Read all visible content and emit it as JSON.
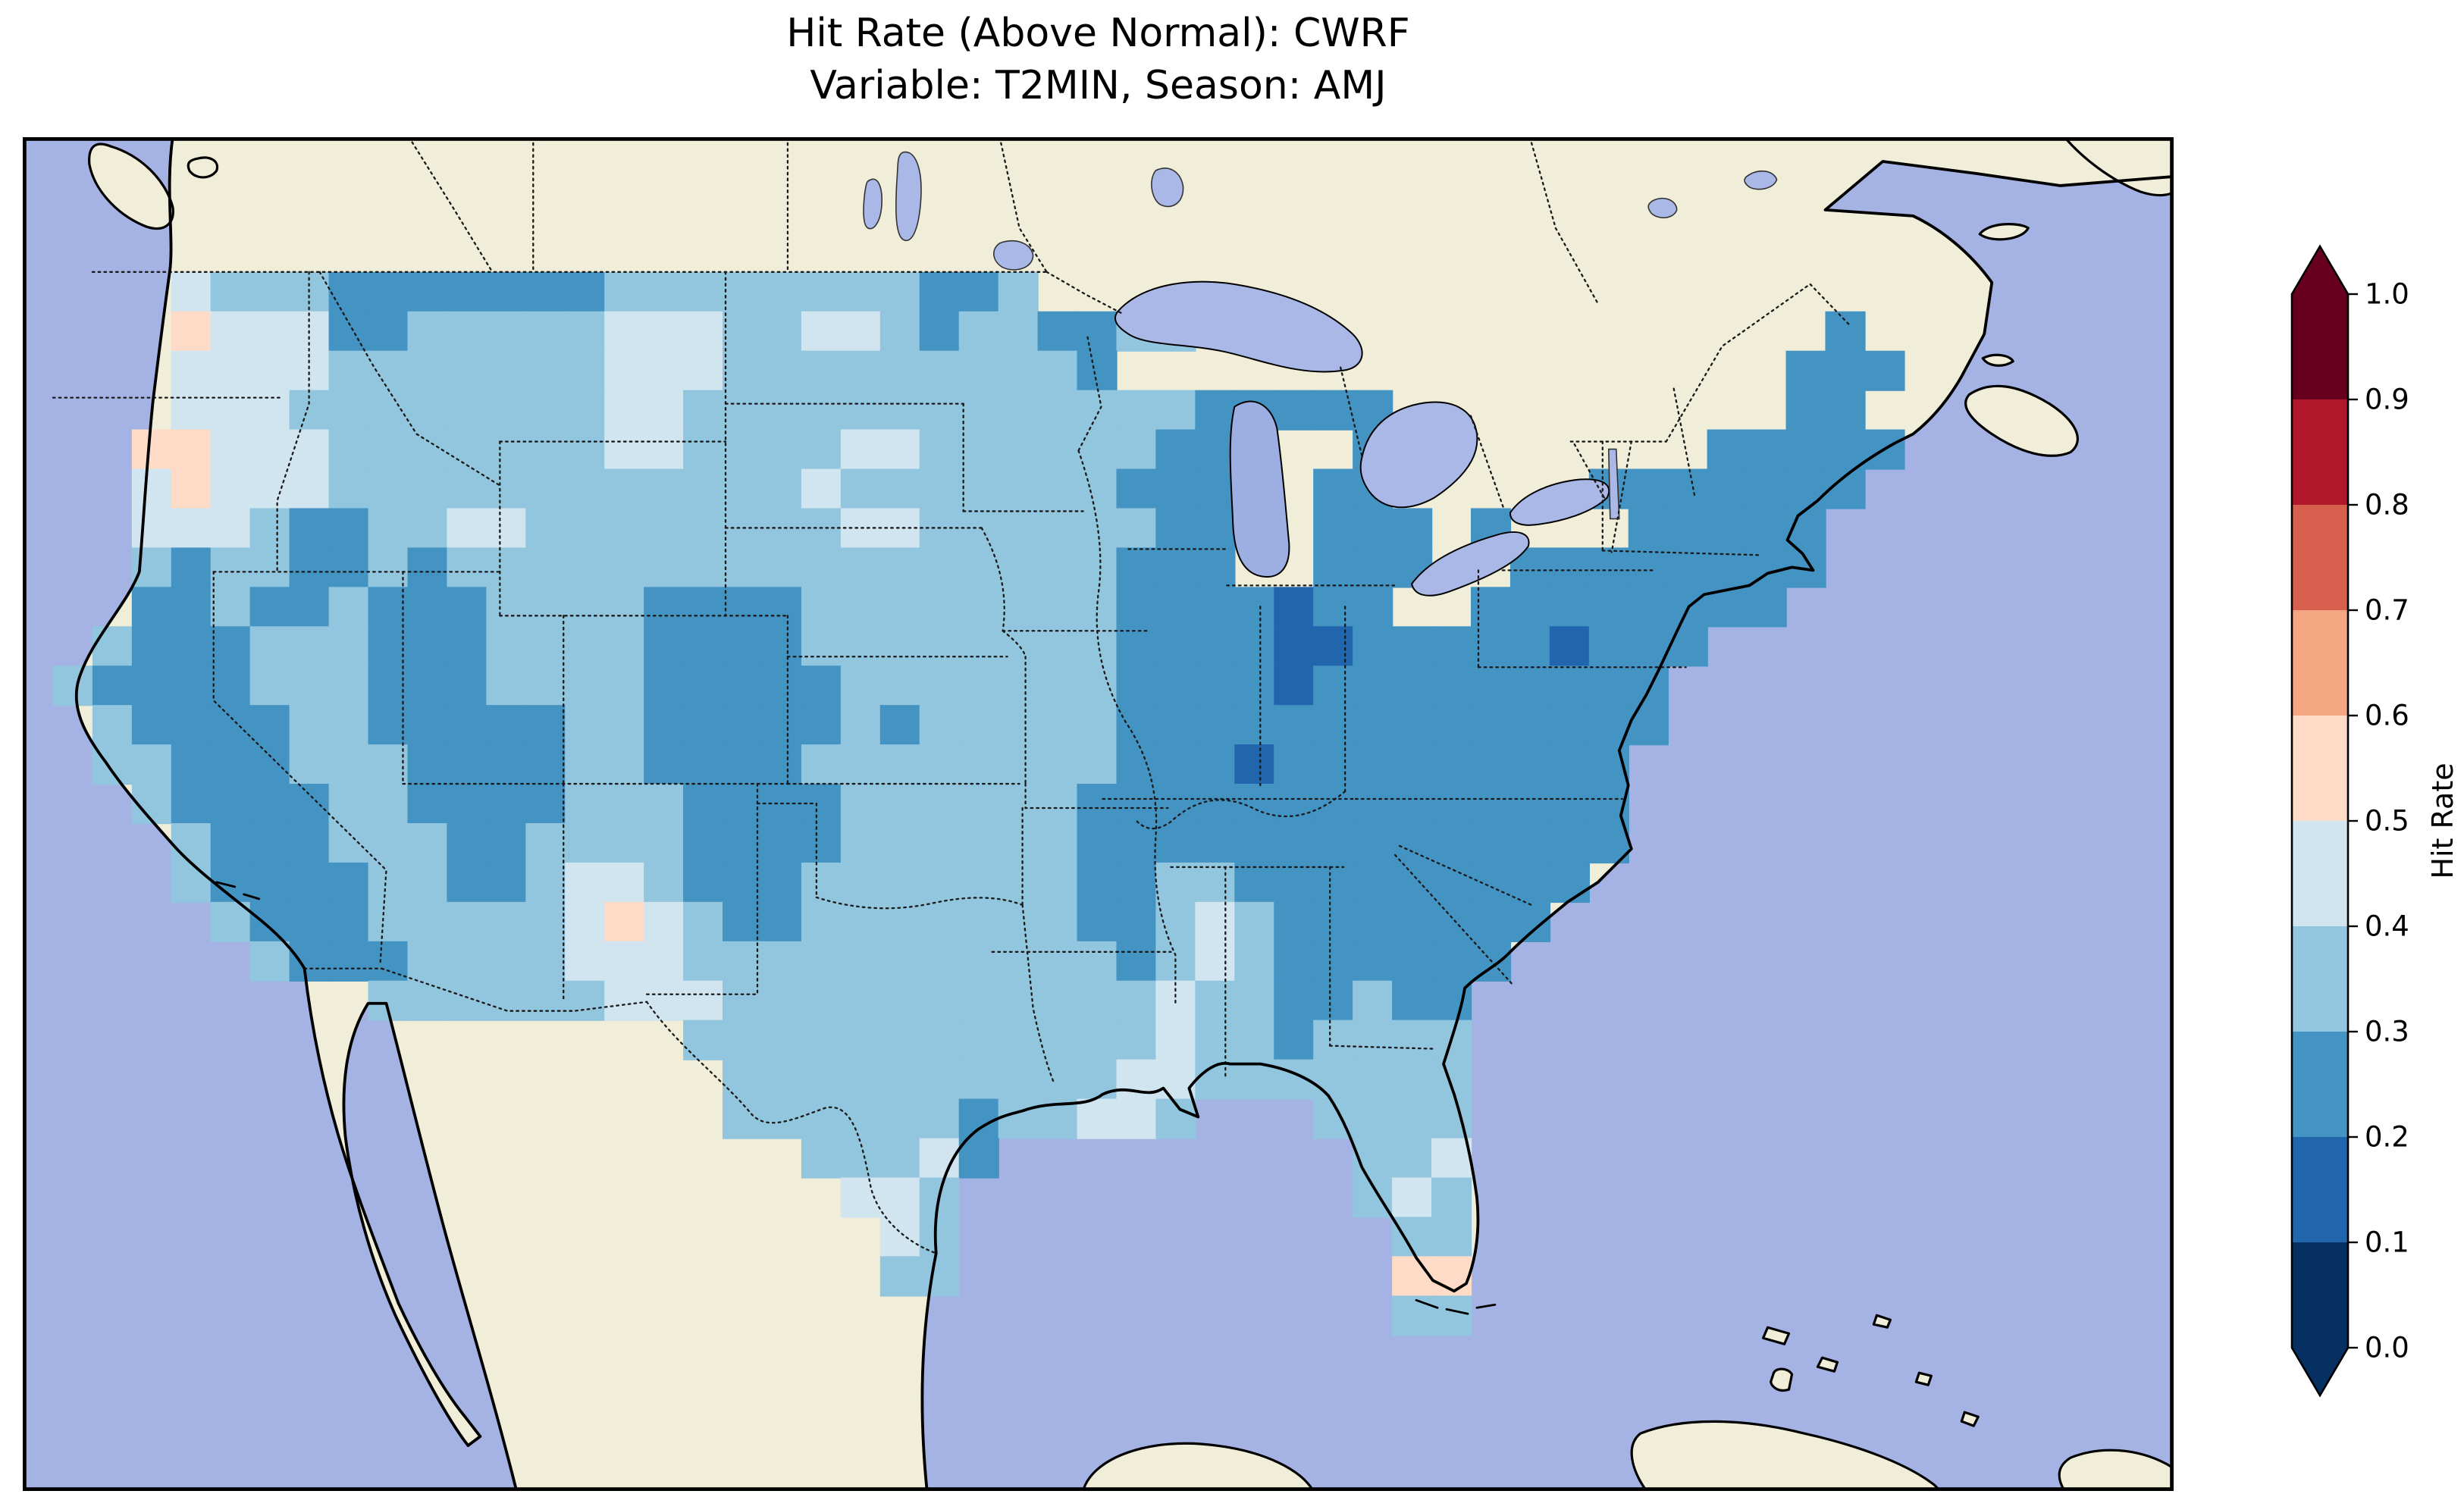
{
  "figure": {
    "title_line1": "Hit Rate (Above Normal): CWRF",
    "title_line2": "Variable: T2MIN, Season: AMJ"
  },
  "colorbar": {
    "label": "Hit Rate",
    "tick_labels": [
      "1.0",
      "0.9",
      "0.8",
      "0.7",
      "0.6",
      "0.5",
      "0.4",
      "0.3",
      "0.2",
      "0.1",
      "0.0"
    ],
    "segments_top_to_bottom": [
      "#67001f",
      "#b2182b",
      "#d6604d",
      "#f4a582",
      "#fddbc7",
      "#d1e5f0",
      "#92c5de",
      "#4393c3",
      "#2166ac",
      "#053061"
    ],
    "extend": "both"
  },
  "map_colors": {
    "ocean": "#a5b3e4",
    "land": "#f0edd8",
    "lake": "#a9b8e6"
  },
  "chart_data": {
    "type": "heatmap",
    "title": "Hit Rate (Above Normal): CWRF — Variable: T2MIN, Season: AMJ",
    "model": "CWRF",
    "metric": "Hit Rate (Above Normal)",
    "variable": "T2MIN",
    "season": "AMJ",
    "region": "Contiguous United States",
    "colormap": "RdBu reversed, 10 discrete bins, extended arrows both ends",
    "value_range": [
      0.0,
      1.0
    ],
    "colorbar_ticks": [
      1.0,
      0.9,
      0.8,
      0.7,
      0.6,
      0.5,
      0.4,
      0.3,
      0.2,
      0.1,
      0.0
    ],
    "legend_position": "right",
    "observed_value_summary": {
      "eastern_us_and_midwest": "mostly 0.2-0.3 (medium blue)",
      "great_plains_and_texas": "mostly 0.3-0.4",
      "central_high_plains_blob": "0.2-0.3 over E Colorado / W Kansas / OK-TX panhandles",
      "pacific_northwest": "0.4-0.6 (lightest region)",
      "california_sierra_great_basin_four_corners": "patches of 0.2-0.3",
      "south_texas_lower_mississippi_valley": "0.4-0.5",
      "isolated_minima_0.1_0.2": "a few cells in Illinois/Indiana and one in Pennsylvania",
      "isolated_0.5_0.6_cells": "southern Florida, central New Mexico, inland Washington/Oregon"
    },
    "grid_encoding": {
      "description": "Coarse visual estimate of the plotted field on a 49x28 cell grid covering approx lon 125W-66W, lat 49N-24N. '.' = outside CONUS (no data).",
      "lon_extent": [
        -125,
        -66
      ],
      "lat_extent": [
        49,
        24
      ],
      "bins": {
        "1": "0.1-0.2",
        "2": "0.2-0.3",
        "3": "0.3-0.4",
        "4": "0.4-0.5",
        "5": "0.5-0.6"
      }
    },
    "bin_colors": {
      "1": "#2166ac",
      "2": "#4393c3",
      "3": "#92c5de",
      "4": "#d1e5f0",
      "5": "#fddbc7"
    },
    "grid": [
      "...4333222222233333333223........................",
      "...54442233333444334432332233................2...",
      "...444433333334443333333332.................222..",
      "...4443333333344333333333333322222..........22...",
      "..5544433333334433334433333322...2........22222..",
      "..4544433333333333343333333222..22.....2222222...",
      "..4443223344333333334433333322..222.2...22222....",
      "..3233223233333333333333333222..222..22222222....",
      "..22322322233332222333333332222122..22222222.....",
      ".32223332223333222233333333222211222221222.......",
      "32222333222333322222333333322221222222222........",
      ".3222233222223322222323333322222222222222........",
      ".332223332222332222333333332221222222222.........",
      "..32222332222333222233333322222222222222.........",
      "...3222333223333222233333322222222222222.........",
      "...322223322344322233333332233222222222..........",
      "....3222333334543223333333223432222222...........",
      ".....32223333444333333333332343222222............",
      "........3333334443333333333343322322.............",
      "................33333333333343323333.............",
      ".................3333333333443333333.............",
      ".................333333233443...3333.............",
      "...................33342.........334.............",
      "....................443..........343.............",
      ".....................43...........33.............",
      ".....................33...........55.............",
      "..................................33.............",
      "................................................."
    ]
  }
}
